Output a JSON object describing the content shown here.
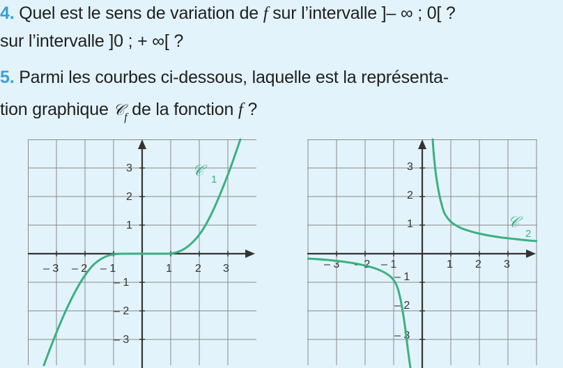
{
  "q4": {
    "number": "4.",
    "text_a": " Quel est le sens de variation de ",
    "var": "f",
    "text_b": " sur l’intervalle ]– ∞ ; 0[ ?",
    "line2": "sur l’intervalle ]0 ; + ∞[ ?"
  },
  "q5": {
    "number": "5.",
    "line1": " Parmi les courbes ci-dessous, laquelle est la représenta-",
    "line2_a": "tion graphique ",
    "curve_symbol": "𝒞",
    "curve_sub": "f",
    "line2_b": " de la fonction ",
    "var": "f",
    "line2_c": " ?"
  },
  "graph1": {
    "label": "𝒞",
    "label_sub": "1",
    "x_ticks": [
      "– 3",
      "– 2",
      "– 1",
      "1",
      "2",
      "3"
    ],
    "y_ticks": [
      "3",
      "2",
      "1",
      "– 1",
      "– 2",
      "– 3"
    ]
  },
  "graph2": {
    "label": "𝒞",
    "label_sub": "2",
    "x_ticks": [
      "– 3",
      "– 2",
      "– 1",
      "1",
      "2",
      "3"
    ],
    "y_ticks": [
      "3",
      "2",
      "1",
      "– 1",
      "– 2",
      "– 3"
    ]
  },
  "colors": {
    "accent": "#3aa0d4",
    "curve": "#3bb07f",
    "background": "#e3f3fb"
  }
}
